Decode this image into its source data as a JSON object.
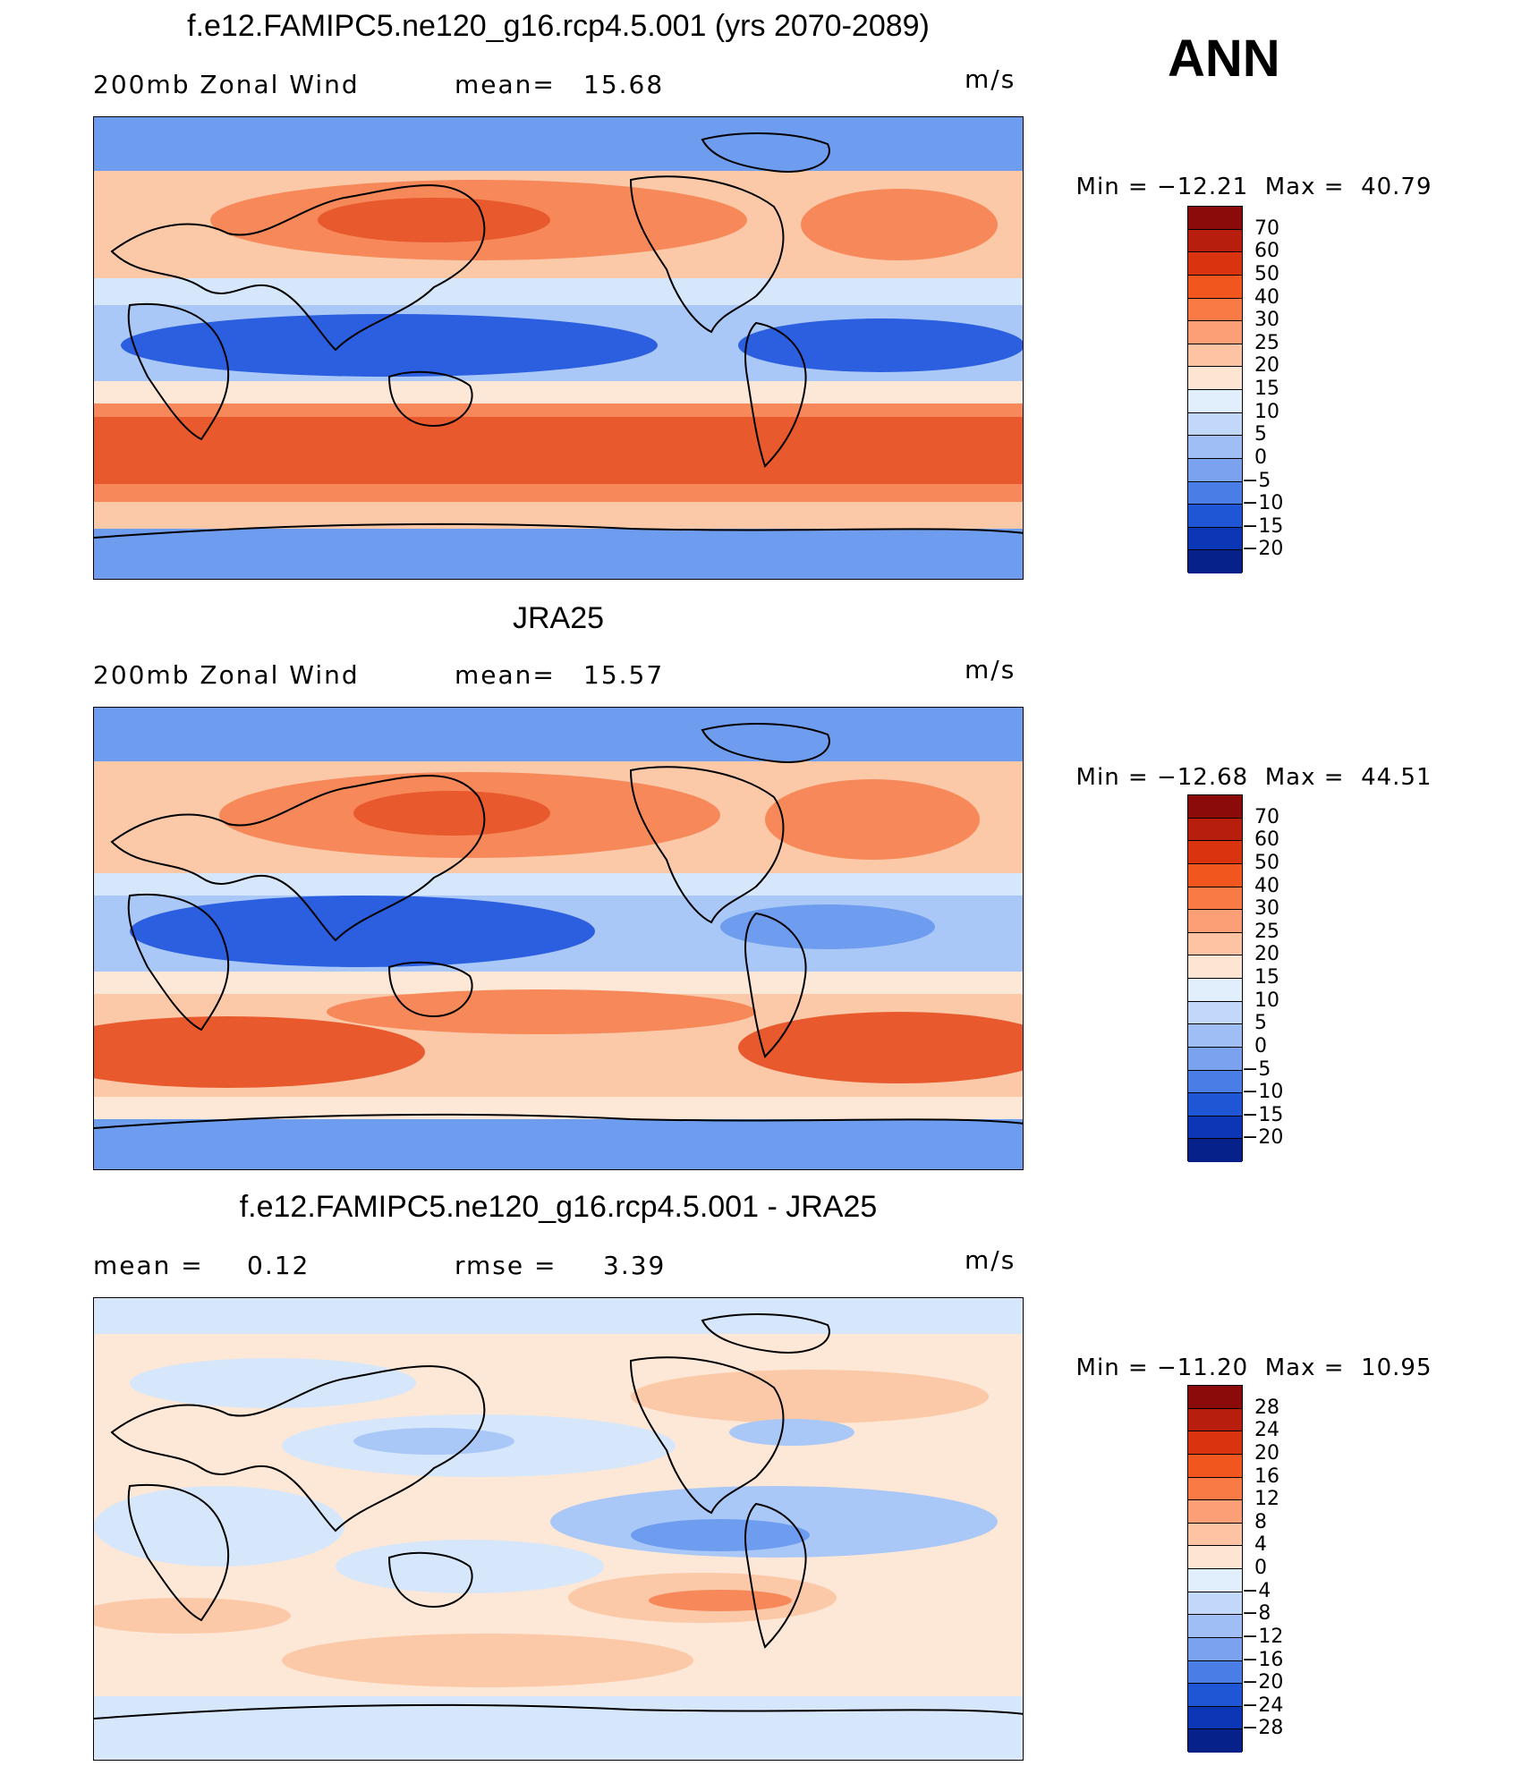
{
  "season": "ANN",
  "panels": [
    {
      "title": "f.e12.FAMIPC5.ne120_g16.rcp4.5.001 (yrs 2070-2089)",
      "variable": "200mb Zonal Wind",
      "stat1_label": "mean=",
      "stat1_value": "15.68",
      "stat2_label": "",
      "stat2_value": "",
      "units": "m/s",
      "min_label": "Min =",
      "min_value": "−12.21",
      "max_label": "Max =",
      "max_value": "40.79",
      "map_colors": {
        "strong": "#e85a2e",
        "mid": "#f7885a",
        "light": "#fcc9a8",
        "pale": "#fde7d6",
        "blue_pale": "#d6e7fb",
        "blue_light": "#a9c8f7",
        "blue_mid": "#6e9df0",
        "blue": "#2b5fe0",
        "blue_deep": "#0a30b0"
      }
    },
    {
      "title": "JRA25",
      "variable": "200mb Zonal Wind",
      "stat1_label": "mean=",
      "stat1_value": "15.57",
      "stat2_label": "",
      "stat2_value": "",
      "units": "m/s",
      "min_label": "Min =",
      "min_value": "−12.68",
      "max_label": "Max =",
      "max_value": "44.51"
    },
    {
      "title": "f.e12.FAMIPC5.ne120_g16.rcp4.5.001 - JRA25",
      "variable": "",
      "stat1_label": "mean =",
      "stat1_value": "0.12",
      "stat2_label": "rmse =",
      "stat2_value": "3.39",
      "units": "m/s",
      "min_label": "Min =",
      "min_value": "−11.20",
      "max_label": "Max =",
      "max_value": "10.95"
    }
  ],
  "colorbars": {
    "field": {
      "labels": [
        "70",
        "60",
        "50",
        "40",
        "30",
        "25",
        "20",
        "15",
        "10",
        "5",
        "0",
        "−5",
        "−10",
        "−15",
        "−20"
      ],
      "colors": [
        "#8b0a0a",
        "#b81e0e",
        "#d9340f",
        "#f0561e",
        "#fa7a45",
        "#fc9e76",
        "#fdc3a2",
        "#fde4d3",
        "#e1eefc",
        "#c2d8fa",
        "#9ebef5",
        "#7aa2ef",
        "#4a7ee6",
        "#1f56d6",
        "#0b36b5",
        "#06218a"
      ]
    },
    "diff": {
      "labels": [
        "28",
        "24",
        "20",
        "16",
        "12",
        "8",
        "4",
        "0",
        "−4",
        "−8",
        "−12",
        "−16",
        "−20",
        "−24",
        "−28"
      ],
      "colors": [
        "#8b0a0a",
        "#b81e0e",
        "#d9340f",
        "#f0561e",
        "#fa7a45",
        "#fc9e76",
        "#fdc3a2",
        "#fde4d3",
        "#e1eefc",
        "#c2d8fa",
        "#9ebef5",
        "#7aa2ef",
        "#4a7ee6",
        "#1f56d6",
        "#0b36b5",
        "#06218a"
      ]
    }
  }
}
